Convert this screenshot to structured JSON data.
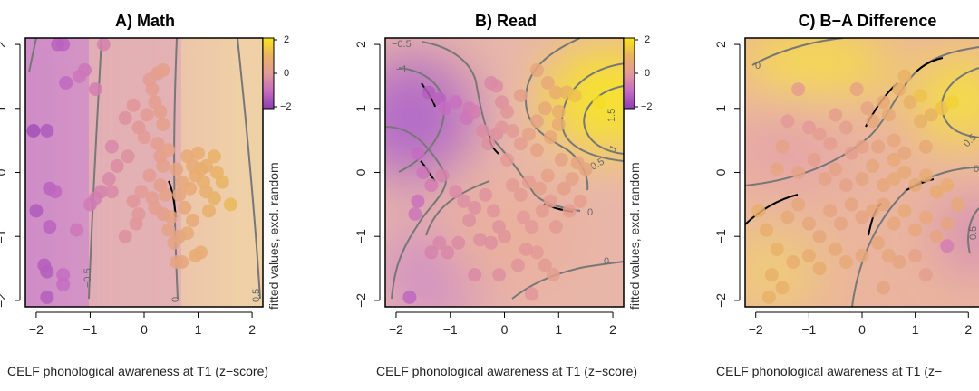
{
  "chart_data": [
    {
      "type": "scatter",
      "title": "A) Math",
      "xlabel": "CELF phonological awareness at T1 (z−score)",
      "ylabel": "",
      "colorbar_label": "fitted values, excl. random",
      "xlim": [
        -2.2,
        2.2
      ],
      "ylim": [
        -2.1,
        2.1
      ],
      "xticks": [
        "−2",
        "−1",
        "0",
        "1",
        "2"
      ],
      "yticks": [
        "−2",
        "−1",
        "0",
        "1",
        "2"
      ],
      "colorbar_ticks": [
        "2",
        "0",
        "−2"
      ],
      "contour_labels": [
        "−0.5",
        "0",
        "0.5"
      ],
      "points": [
        [
          -1.6,
          2.0
        ],
        [
          -1.5,
          2.0
        ],
        [
          -0.75,
          2.0
        ],
        [
          -1.2,
          1.5
        ],
        [
          -1.45,
          1.4
        ],
        [
          -1.1,
          1.6
        ],
        [
          -0.9,
          1.3
        ],
        [
          0.1,
          1.45
        ],
        [
          0.25,
          1.55
        ],
        [
          0.35,
          1.6
        ],
        [
          0.15,
          1.3
        ],
        [
          -0.2,
          1.05
        ],
        [
          0.05,
          0.9
        ],
        [
          0.2,
          1.1
        ],
        [
          -0.35,
          0.85
        ],
        [
          -0.1,
          0.7
        ],
        [
          0.0,
          0.55
        ],
        [
          0.3,
          0.95
        ],
        [
          0.35,
          0.75
        ],
        [
          -1.8,
          0.65
        ],
        [
          -2.05,
          0.65
        ],
        [
          -0.6,
          0.4
        ],
        [
          -0.5,
          0.1
        ],
        [
          -0.3,
          0.25
        ],
        [
          -0.65,
          -0.1
        ],
        [
          -0.8,
          -0.3
        ],
        [
          -0.6,
          -0.3
        ],
        [
          -0.9,
          -0.4
        ],
        [
          -1.0,
          -0.5
        ],
        [
          -1.75,
          -0.25
        ],
        [
          -1.65,
          -0.3
        ],
        [
          -2.0,
          -0.6
        ],
        [
          -1.75,
          -0.85
        ],
        [
          -1.25,
          -0.9
        ],
        [
          -1.85,
          -1.45
        ],
        [
          -1.8,
          -1.55
        ],
        [
          -1.5,
          -1.6
        ],
        [
          -1.5,
          -1.75
        ],
        [
          -1.8,
          -1.95
        ],
        [
          -0.15,
          -0.8
        ],
        [
          -0.35,
          -1.0
        ],
        [
          -0.1,
          -0.65
        ],
        [
          -0.2,
          -0.45
        ],
        [
          -0.05,
          -0.3
        ],
        [
          0.15,
          -0.4
        ],
        [
          0.2,
          -0.55
        ],
        [
          0.35,
          -0.65
        ],
        [
          0.3,
          -0.2
        ],
        [
          0.1,
          -0.05
        ],
        [
          0.35,
          0.1
        ],
        [
          0.3,
          0.25
        ],
        [
          0.25,
          0.45
        ],
        [
          0.6,
          0.05
        ],
        [
          0.7,
          -0.15
        ],
        [
          0.8,
          0.25
        ],
        [
          0.9,
          0.1
        ],
        [
          0.95,
          -0.05
        ],
        [
          1.05,
          0.05
        ],
        [
          1.1,
          -0.15
        ],
        [
          0.85,
          -0.25
        ],
        [
          0.65,
          -0.35
        ],
        [
          0.75,
          -0.55
        ],
        [
          0.9,
          -0.75
        ],
        [
          1.15,
          -0.3
        ],
        [
          1.2,
          -0.6
        ],
        [
          1.0,
          0.3
        ],
        [
          1.3,
          0.25
        ],
        [
          1.35,
          0.0
        ],
        [
          1.45,
          -0.15
        ],
        [
          1.6,
          -0.5
        ],
        [
          1.3,
          -0.4
        ],
        [
          0.45,
          -0.9
        ],
        [
          0.55,
          -1.1
        ],
        [
          0.65,
          -1.0
        ],
        [
          0.4,
          -0.35
        ],
        [
          0.5,
          -0.7
        ],
        [
          0.8,
          -0.95
        ],
        [
          0.6,
          -1.4
        ],
        [
          0.7,
          -1.4
        ],
        [
          0.95,
          -1.3
        ],
        [
          1.05,
          -1.25
        ],
        [
          0.45,
          0.35
        ],
        [
          1.15,
          0.1
        ]
      ],
      "values": [
        -1.2,
        -1.2,
        -0.5,
        -0.8,
        -1.1,
        -0.8,
        -0.6,
        0.1,
        0.2,
        0.25,
        0.15,
        -0.1,
        0.05,
        0.15,
        -0.2,
        -0.05,
        0.0,
        0.2,
        0.25,
        -1.4,
        -1.6,
        -0.4,
        -0.3,
        -0.2,
        -0.4,
        -0.5,
        -0.4,
        -0.6,
        -0.7,
        -1.2,
        -1.1,
        -1.4,
        -1.2,
        -0.8,
        -1.3,
        -1.3,
        -1.0,
        -1.0,
        -1.3,
        -0.1,
        -0.2,
        -0.05,
        -0.1,
        0.0,
        0.1,
        0.15,
        0.2,
        0.2,
        0.05,
        0.25,
        0.2,
        0.15,
        0.4,
        0.5,
        0.6,
        0.65,
        0.7,
        0.75,
        0.8,
        0.6,
        0.45,
        0.5,
        0.6,
        0.8,
        0.85,
        0.7,
        0.95,
        0.95,
        1.0,
        1.1,
        0.9,
        0.3,
        0.35,
        0.45,
        0.3,
        0.35,
        0.55,
        0.4,
        0.45,
        0.65,
        0.7,
        0.3,
        0.8
      ],
      "color_limits": [
        -2,
        2
      ]
    },
    {
      "type": "scatter",
      "title": "B) Read",
      "xlabel": "CELF phonological awareness at T1 (z−score)",
      "ylabel": "",
      "colorbar_label": "fitted values, excl. random",
      "xlim": [
        -2.2,
        2.2
      ],
      "ylim": [
        -2.1,
        2.1
      ],
      "xticks": [
        "−2",
        "−1",
        "0",
        "1",
        "2"
      ],
      "yticks": [
        "−2",
        "−1",
        "0",
        "1",
        "2"
      ],
      "colorbar_ticks": [
        "2",
        "0",
        "−2"
      ],
      "contour_labels": [
        "−0.5",
        "−1",
        "0",
        "0.5",
        "1",
        "1.5",
        "0"
      ],
      "points": [
        [
          -1.4,
          1.25
        ],
        [
          -1.2,
          1.15
        ],
        [
          -1.1,
          1.0
        ],
        [
          -0.9,
          1.1
        ],
        [
          -0.65,
          1.0
        ],
        [
          -0.7,
          0.85
        ],
        [
          -0.55,
          0.95
        ],
        [
          -0.25,
          1.4
        ],
        [
          -0.15,
          1.35
        ],
        [
          -0.05,
          1.1
        ],
        [
          0.05,
          0.95
        ],
        [
          -0.4,
          0.65
        ],
        [
          -0.3,
          0.45
        ],
        [
          -0.15,
          0.6
        ],
        [
          -0.05,
          0.7
        ],
        [
          0.15,
          0.65
        ],
        [
          0.3,
          0.45
        ],
        [
          0.6,
          1.6
        ],
        [
          0.8,
          1.4
        ],
        [
          0.75,
          1.0
        ],
        [
          0.95,
          1.25
        ],
        [
          1.15,
          1.25
        ],
        [
          0.6,
          0.8
        ],
        [
          0.45,
          0.6
        ],
        [
          0.6,
          0.35
        ],
        [
          0.85,
          0.55
        ],
        [
          1.0,
          0.75
        ],
        [
          1.3,
          1.2
        ],
        [
          1.75,
          1.1
        ],
        [
          -1.6,
          0.3
        ],
        [
          -1.5,
          0.0
        ],
        [
          -1.35,
          -0.2
        ],
        [
          -1.6,
          -0.45
        ],
        [
          -1.15,
          -0.05
        ],
        [
          -0.9,
          -0.3
        ],
        [
          -0.75,
          -0.45
        ],
        [
          -0.55,
          -0.55
        ],
        [
          -0.35,
          -0.35
        ],
        [
          -0.2,
          -0.6
        ],
        [
          -0.1,
          -0.85
        ],
        [
          0.0,
          -1.0
        ],
        [
          -0.25,
          -1.1
        ],
        [
          -0.45,
          -1.05
        ],
        [
          -0.65,
          -0.75
        ],
        [
          -0.85,
          -1.1
        ],
        [
          -1.05,
          -1.25
        ],
        [
          -1.2,
          -1.1
        ],
        [
          -1.35,
          -1.25
        ],
        [
          -1.65,
          -0.65
        ],
        [
          -1.75,
          -1.95
        ],
        [
          0.15,
          -0.2
        ],
        [
          0.3,
          -0.35
        ],
        [
          0.45,
          -0.15
        ],
        [
          0.65,
          -0.25
        ],
        [
          0.8,
          -0.05
        ],
        [
          0.35,
          -0.7
        ],
        [
          0.5,
          -0.85
        ],
        [
          0.7,
          -0.6
        ],
        [
          0.85,
          -0.45
        ],
        [
          0.95,
          -0.85
        ],
        [
          0.6,
          -1.25
        ],
        [
          0.75,
          -1.45
        ],
        [
          0.9,
          -1.6
        ],
        [
          0.5,
          -1.9
        ],
        [
          1.1,
          -0.25
        ],
        [
          1.25,
          -0.1
        ],
        [
          1.35,
          0.15
        ],
        [
          1.5,
          0.05
        ],
        [
          1.05,
          0.2
        ],
        [
          1.2,
          -0.6
        ],
        [
          0.4,
          -1.2
        ],
        [
          0.25,
          -1.45
        ],
        [
          -0.55,
          -1.6
        ],
        [
          -0.1,
          -1.6
        ],
        [
          0.05,
          0.2
        ],
        [
          1.0,
          0.95
        ],
        [
          0.3,
          1.2
        ],
        [
          1.4,
          -0.45
        ]
      ],
      "values": [
        -1.3,
        -1.2,
        -1.0,
        -0.9,
        -0.7,
        -0.8,
        -0.6,
        -0.4,
        -0.3,
        -0.2,
        -0.1,
        -0.3,
        -0.2,
        -0.2,
        -0.1,
        0.0,
        0.1,
        0.5,
        0.6,
        0.6,
        0.8,
        1.0,
        0.4,
        0.3,
        0.35,
        0.55,
        0.7,
        1.3,
        1.8,
        -1.0,
        -0.8,
        -0.6,
        -0.9,
        -0.5,
        -0.3,
        -0.25,
        -0.2,
        -0.15,
        -0.1,
        -0.15,
        -0.1,
        -0.2,
        -0.2,
        -0.2,
        -0.3,
        -0.4,
        -0.4,
        -0.5,
        -0.8,
        -1.1,
        0.05,
        0.05,
        0.1,
        0.2,
        0.3,
        0.0,
        0.0,
        0.05,
        0.15,
        0.05,
        0.0,
        0.05,
        0.1,
        -0.1,
        0.25,
        0.3,
        0.4,
        0.45,
        0.3,
        0.15,
        -0.05,
        -0.1,
        -0.35,
        -0.2,
        0.0,
        0.8,
        0.2,
        0.2
      ],
      "color_limits": [
        -2,
        2
      ]
    },
    {
      "type": "scatter",
      "title": "C) B−A Difference",
      "xlabel": "CELF phonological awareness at T1 (z−",
      "ylabel": "",
      "xlim": [
        -2.2,
        2.2
      ],
      "ylim": [
        -2.1,
        2.1
      ],
      "xticks": [
        "−2",
        "−1",
        "0",
        "1",
        "2"
      ],
      "yticks": [
        "−2",
        "−1",
        "0",
        "1",
        "2"
      ],
      "contour_labels": [
        "0",
        "0.5",
        "0",
        "0.5"
      ],
      "points": [
        [
          -1.2,
          1.3
        ],
        [
          -1.4,
          0.8
        ],
        [
          -1.0,
          0.7
        ],
        [
          -0.8,
          0.6
        ],
        [
          -0.5,
          0.9
        ],
        [
          -0.3,
          0.7
        ],
        [
          -0.6,
          0.45
        ],
        [
          -0.2,
          0.3
        ],
        [
          0.0,
          0.4
        ],
        [
          0.2,
          0.8
        ],
        [
          0.4,
          1.1
        ],
        [
          0.5,
          0.9
        ],
        [
          0.1,
          1.0
        ],
        [
          0.7,
          1.3
        ],
        [
          0.8,
          1.5
        ],
        [
          0.9,
          1.1
        ],
        [
          1.1,
          0.8
        ],
        [
          1.3,
          0.9
        ],
        [
          1.5,
          1.0
        ],
        [
          1.7,
          1.1
        ],
        [
          1.2,
          0.4
        ],
        [
          0.8,
          0.3
        ],
        [
          0.6,
          0.5
        ],
        [
          0.3,
          0.4
        ],
        [
          -1.5,
          0.4
        ],
        [
          -1.6,
          0.05
        ],
        [
          -1.2,
          0.0
        ],
        [
          -0.9,
          0.2
        ],
        [
          -0.7,
          -0.1
        ],
        [
          -0.5,
          0.05
        ],
        [
          -0.3,
          -0.2
        ],
        [
          0.0,
          -0.1
        ],
        [
          0.2,
          0.1
        ],
        [
          0.4,
          -0.2
        ],
        [
          0.6,
          -0.1
        ],
        [
          0.8,
          0.0
        ],
        [
          1.0,
          -0.2
        ],
        [
          1.2,
          -0.05
        ],
        [
          1.4,
          -0.3
        ],
        [
          1.6,
          -0.2
        ],
        [
          1.8,
          -0.5
        ],
        [
          -1.95,
          -0.6
        ],
        [
          -1.8,
          -0.9
        ],
        [
          -1.6,
          -1.2
        ],
        [
          -1.4,
          -0.7
        ],
        [
          -1.2,
          -0.5
        ],
        [
          -1.0,
          -0.8
        ],
        [
          -0.8,
          -1.0
        ],
        [
          -0.6,
          -0.6
        ],
        [
          -0.4,
          -0.8
        ],
        [
          -0.2,
          -0.5
        ],
        [
          0.0,
          -0.7
        ],
        [
          0.2,
          -0.6
        ],
        [
          0.4,
          -0.5
        ],
        [
          0.6,
          -0.8
        ],
        [
          0.8,
          -0.6
        ],
        [
          1.0,
          -0.9
        ],
        [
          1.2,
          -0.7
        ],
        [
          1.4,
          -1.0
        ],
        [
          1.6,
          -0.8
        ],
        [
          -1.7,
          -1.6
        ],
        [
          -1.5,
          -1.8
        ],
        [
          -1.3,
          -1.4
        ],
        [
          -1.0,
          -1.3
        ],
        [
          -0.8,
          -1.5
        ],
        [
          -0.5,
          -1.2
        ],
        [
          -0.3,
          -1.4
        ],
        [
          0.0,
          -1.3
        ],
        [
          0.3,
          -1.1
        ],
        [
          0.5,
          -1.3
        ],
        [
          0.7,
          -1.4
        ],
        [
          1.0,
          -1.3
        ],
        [
          1.2,
          -1.6
        ],
        [
          0.4,
          -1.8
        ],
        [
          -1.75,
          -1.95
        ],
        [
          1.6,
          -1.15
        ],
        [
          1.1,
          1.2
        ],
        [
          -0.1,
          1.3
        ],
        [
          0.6,
          0.2
        ]
      ],
      "values": [
        0.2,
        0.0,
        0.0,
        0.1,
        0.2,
        0.2,
        0.1,
        0.2,
        0.3,
        0.5,
        0.6,
        0.6,
        0.4,
        0.8,
        0.9,
        0.9,
        0.9,
        1.0,
        1.3,
        1.6,
        0.6,
        0.5,
        0.5,
        0.4,
        0.3,
        0.4,
        0.3,
        0.2,
        0.3,
        0.3,
        0.3,
        0.4,
        0.5,
        0.5,
        0.6,
        0.6,
        0.6,
        0.7,
        0.7,
        0.7,
        0.6,
        0.8,
        0.8,
        0.9,
        0.6,
        0.5,
        0.5,
        0.5,
        0.4,
        0.4,
        0.4,
        0.4,
        0.5,
        0.5,
        0.5,
        0.6,
        0.5,
        0.5,
        0.4,
        0.4,
        0.9,
        0.9,
        0.8,
        0.7,
        0.7,
        0.6,
        0.6,
        0.5,
        0.5,
        0.5,
        0.4,
        0.3,
        0.2,
        0.4,
        0.9,
        -0.6,
        1.3,
        0.4,
        0.6
      ],
      "color_limits": [
        -2,
        2
      ]
    }
  ]
}
